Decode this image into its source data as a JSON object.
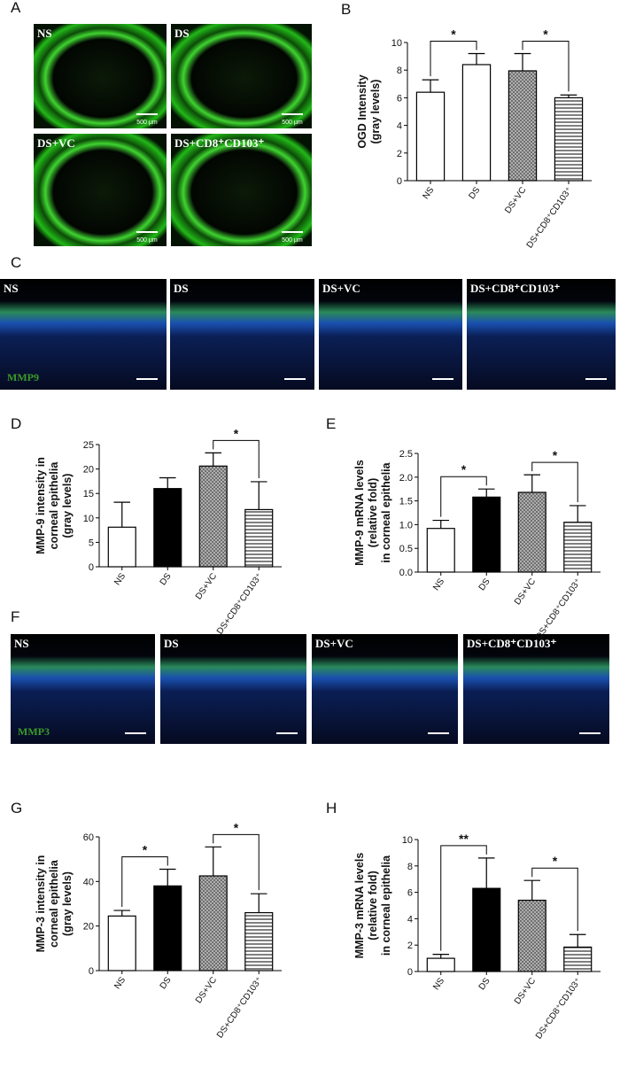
{
  "chart_data": [
    {
      "type": "bar",
      "panel": "B",
      "ylabel": [
        "OGD Intensity",
        "(gray levels)"
      ],
      "categories": [
        "NS",
        "DS",
        "DS+VC",
        "DS+CD8⁺CD103⁺"
      ],
      "values": [
        6.4,
        8.4,
        7.95,
        6.0
      ],
      "errors": [
        0.9,
        0.8,
        1.25,
        0.2
      ],
      "fills": [
        "white",
        "white",
        "crosshatch",
        "hlines"
      ],
      "ylim": [
        0,
        10
      ],
      "yticks": [
        0,
        2,
        4,
        6,
        8,
        10
      ],
      "brackets": [
        {
          "from": 0,
          "to": 1,
          "label": "*"
        },
        {
          "from": 2,
          "to": 3,
          "label": "*"
        }
      ]
    },
    {
      "type": "bar",
      "panel": "D",
      "ylabel": [
        "MMP-9 intensity in",
        "corneal epithelia",
        "(gray levels)"
      ],
      "categories": [
        "NS",
        "DS",
        "DS+VC",
        "DS+CD8⁺CD103⁺"
      ],
      "values": [
        8.1,
        16.0,
        20.6,
        11.7
      ],
      "errors": [
        5.1,
        2.2,
        2.7,
        5.7
      ],
      "fills": [
        "white",
        "black",
        "crosshatch",
        "hlines"
      ],
      "ylim": [
        0,
        25
      ],
      "yticks": [
        0,
        5,
        10,
        15,
        20,
        25
      ],
      "brackets": [
        {
          "from": 2,
          "to": 3,
          "label": "*"
        }
      ]
    },
    {
      "type": "bar",
      "panel": "E",
      "ylabel": [
        "MMP-9 mRNA levels",
        "(relative fold)",
        "in corneal epithelia"
      ],
      "categories": [
        "NS",
        "DS",
        "DS+VC",
        "DS+CD8⁺CD103⁺"
      ],
      "values": [
        0.92,
        1.58,
        1.68,
        1.05
      ],
      "errors": [
        0.17,
        0.17,
        0.37,
        0.35
      ],
      "fills": [
        "white",
        "black",
        "crosshatch",
        "hlines"
      ],
      "ylim": [
        0,
        2.5
      ],
      "yticks": [
        {
          "value": 0,
          "label": "0.0"
        },
        0.5,
        {
          "value": 1,
          "label": "1.0"
        },
        1.5,
        {
          "value": 2,
          "label": "2.0"
        },
        2.5
      ],
      "brackets": [
        {
          "from": 0,
          "to": 1,
          "label": "*"
        },
        {
          "from": 2,
          "to": 3,
          "label": "*"
        }
      ]
    },
    {
      "type": "bar",
      "panel": "G",
      "ylabel": [
        "MMP-3 intensity in",
        "corneal epithelia",
        "(gray levels)"
      ],
      "categories": [
        "NS",
        "DS",
        "DS+VC",
        "DS+CD8⁺CD103⁺"
      ],
      "values": [
        24.5,
        38,
        42.5,
        26
      ],
      "errors": [
        2.5,
        7.5,
        13,
        8.5
      ],
      "fills": [
        "white",
        "black",
        "crosshatch",
        "hlines"
      ],
      "ylim": [
        0,
        60
      ],
      "yticks": [
        0,
        20,
        40,
        60
      ],
      "brackets": [
        {
          "from": 0,
          "to": 1,
          "label": "*"
        },
        {
          "from": 2,
          "to": 3,
          "label": "*"
        }
      ]
    },
    {
      "type": "bar",
      "panel": "H",
      "ylabel": [
        "MMP-3 mRNA levels",
        "(relative fold)",
        "in corneal epithelia"
      ],
      "categories": [
        "NS",
        "DS",
        "DS+VC",
        "DS+CD8⁺CD103⁺"
      ],
      "values": [
        1.0,
        6.3,
        5.4,
        1.85
      ],
      "errors": [
        0.3,
        2.3,
        1.5,
        0.95
      ],
      "fills": [
        "white",
        "black",
        "crosshatch",
        "hlines"
      ],
      "ylim": [
        0,
        10
      ],
      "yticks": [
        0,
        2,
        4,
        6,
        8,
        10
      ],
      "brackets": [
        {
          "from": 0,
          "to": 1,
          "label": "**"
        },
        {
          "from": 2,
          "to": 3,
          "label": "*"
        }
      ]
    }
  ],
  "image_panels": [
    {
      "letter": "A",
      "labels": [
        "NS",
        "DS",
        "DS+VC",
        "DS+CD8⁺CD103⁺"
      ],
      "scale_label": "500 μm"
    },
    {
      "letter": "C",
      "labels": [
        "NS",
        "DS",
        "DS+VC",
        "DS+CD8⁺CD103⁺"
      ],
      "stain": "MMP9"
    },
    {
      "letter": "F",
      "labels": [
        "NS",
        "DS",
        "DS+VC",
        "DS+CD8⁺CD103⁺"
      ],
      "stain": "MMP3"
    }
  ]
}
